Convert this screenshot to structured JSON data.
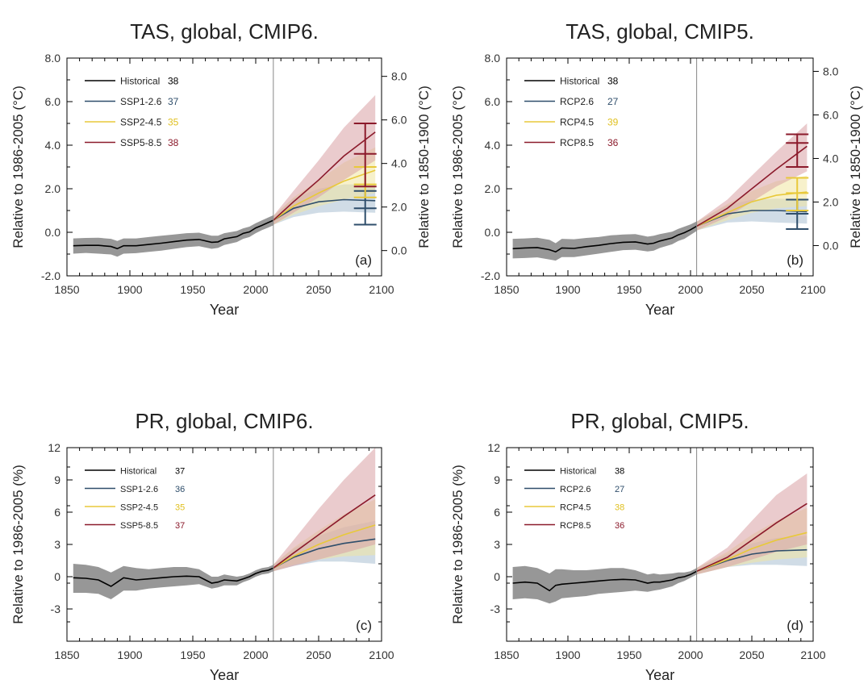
{
  "chart_data": [
    {
      "type": "line",
      "panel_label": "(a)",
      "title": "TAS, global, CMIP6.",
      "xlabel": "Year",
      "ylabel": "Relative to 1986-2005 (°C)",
      "y2label": "Relative to 1850-1900 (°C)",
      "xlim": [
        1850,
        2100
      ],
      "xticks": [
        "1850",
        "1900",
        "1950",
        "2000",
        "2050",
        "2100"
      ],
      "ylim": [
        -2,
        8
      ],
      "yticks": [
        "-2.0",
        "0.0",
        "2.0",
        "4.0",
        "6.0",
        "8.0"
      ],
      "y2ticks": [
        "0.0",
        "2.0",
        "4.0",
        "6.0",
        "8.0"
      ],
      "y2offset": 0.84,
      "divider_year": 2014,
      "legend_position": "top-left",
      "series": [
        {
          "name": "Historical",
          "count": "38",
          "color": "#000000",
          "band": "#8c8c8c",
          "x": [
            1855,
            1865,
            1875,
            1885,
            1890,
            1895,
            1905,
            1915,
            1925,
            1935,
            1945,
            1955,
            1965,
            1970,
            1975,
            1985,
            1990,
            1995,
            2000,
            2005,
            2010,
            2014
          ],
          "y": [
            -0.62,
            -0.6,
            -0.6,
            -0.65,
            -0.75,
            -0.62,
            -0.62,
            -0.56,
            -0.5,
            -0.43,
            -0.36,
            -0.33,
            -0.46,
            -0.44,
            -0.3,
            -0.2,
            -0.05,
            0.02,
            0.2,
            0.32,
            0.45,
            0.55
          ],
          "lower": [
            -0.98,
            -0.95,
            -0.98,
            -1.02,
            -1.12,
            -0.98,
            -0.96,
            -0.9,
            -0.84,
            -0.76,
            -0.68,
            -0.64,
            -0.76,
            -0.72,
            -0.58,
            -0.45,
            -0.3,
            -0.22,
            -0.04,
            0.1,
            0.22,
            0.32
          ],
          "upper": [
            -0.28,
            -0.26,
            -0.25,
            -0.3,
            -0.4,
            -0.28,
            -0.28,
            -0.22,
            -0.16,
            -0.1,
            -0.04,
            -0.02,
            -0.16,
            -0.16,
            -0.04,
            0.06,
            0.18,
            0.26,
            0.42,
            0.55,
            0.68,
            0.78
          ]
        },
        {
          "name": "SSP1-2.6",
          "count": "37",
          "color": "#2f4e6b",
          "band": "#a9bfd2",
          "x": [
            2014,
            2030,
            2050,
            2070,
            2095
          ],
          "y": [
            0.55,
            1.1,
            1.4,
            1.5,
            1.45
          ],
          "lower": [
            0.35,
            0.7,
            0.9,
            0.95,
            0.9
          ],
          "upper": [
            0.75,
            1.55,
            2.0,
            2.2,
            2.2
          ]
        },
        {
          "name": "SSP2-4.5",
          "count": "35",
          "color": "#e8c93a",
          "band": "#f0e6a0",
          "x": [
            2014,
            2030,
            2050,
            2070,
            2095
          ],
          "y": [
            0.55,
            1.2,
            1.8,
            2.35,
            2.85
          ],
          "lower": [
            0.35,
            0.8,
            1.2,
            1.5,
            1.8
          ],
          "upper": [
            0.75,
            1.6,
            2.4,
            3.2,
            3.9
          ]
        },
        {
          "name": "SSP5-8.5",
          "count": "38",
          "color": "#8b1a2b",
          "band": "#d9a0a4",
          "x": [
            2014,
            2030,
            2050,
            2070,
            2095
          ],
          "y": [
            0.55,
            1.4,
            2.4,
            3.5,
            4.6
          ],
          "lower": [
            0.35,
            0.9,
            1.6,
            2.4,
            3.3
          ],
          "upper": [
            0.75,
            1.9,
            3.3,
            4.8,
            6.3
          ]
        }
      ],
      "error_bars": [
        {
          "series": "SSP1-2.6",
          "x": 2087,
          "low": 0.35,
          "mid": 1.1,
          "high": 1.9
        },
        {
          "series": "SSP2-4.5",
          "x": 2087,
          "low": 1.6,
          "mid": 2.2,
          "high": 3.0
        },
        {
          "series": "SSP5-8.5",
          "x": 2087,
          "low": 2.1,
          "mid": 3.6,
          "high": 5.0
        }
      ]
    },
    {
      "type": "line",
      "panel_label": "(b)",
      "title": "TAS, global, CMIP5.",
      "xlabel": "Year",
      "ylabel": "Relative to 1986-2005 (°C)",
      "y2label": "Relative to 1850-1900 (°C)",
      "xlim": [
        1850,
        2100
      ],
      "xticks": [
        "1850",
        "1900",
        "1950",
        "2000",
        "2050",
        "2100"
      ],
      "ylim": [
        -2,
        8
      ],
      "yticks": [
        "-2.0",
        "0.0",
        "2.0",
        "4.0",
        "6.0",
        "8.0"
      ],
      "y2ticks": [
        "0.0",
        "2.0",
        "4.0",
        "6.0",
        "8.0"
      ],
      "y2offset": 0.61,
      "divider_year": 2005,
      "legend_position": "top-left",
      "series": [
        {
          "name": "Historical",
          "count": "38",
          "color": "#000000",
          "band": "#8c8c8c",
          "x": [
            1855,
            1865,
            1875,
            1885,
            1890,
            1895,
            1905,
            1915,
            1925,
            1935,
            1945,
            1955,
            1965,
            1970,
            1975,
            1985,
            1990,
            1995,
            2000,
            2005
          ],
          "y": [
            -0.75,
            -0.72,
            -0.7,
            -0.8,
            -0.9,
            -0.72,
            -0.74,
            -0.66,
            -0.6,
            -0.52,
            -0.46,
            -0.44,
            -0.54,
            -0.5,
            -0.4,
            -0.26,
            -0.12,
            -0.02,
            0.12,
            0.28
          ],
          "lower": [
            -1.2,
            -1.18,
            -1.15,
            -1.25,
            -1.3,
            -1.14,
            -1.14,
            -1.06,
            -0.98,
            -0.9,
            -0.82,
            -0.8,
            -0.88,
            -0.84,
            -0.72,
            -0.55,
            -0.4,
            -0.3,
            -0.12,
            0.06
          ],
          "upper": [
            -0.3,
            -0.28,
            -0.25,
            -0.35,
            -0.5,
            -0.3,
            -0.32,
            -0.26,
            -0.22,
            -0.14,
            -0.1,
            -0.08,
            -0.2,
            -0.16,
            -0.08,
            0.03,
            0.16,
            0.26,
            0.36,
            0.5
          ]
        },
        {
          "name": "RCP2.6",
          "count": "27",
          "color": "#2f4e6b",
          "band": "#a9bfd2",
          "x": [
            2005,
            2030,
            2050,
            2070,
            2095
          ],
          "y": [
            0.28,
            0.85,
            1.0,
            1.0,
            0.95
          ],
          "lower": [
            0.08,
            0.45,
            0.5,
            0.45,
            0.4
          ],
          "upper": [
            0.48,
            1.25,
            1.5,
            1.55,
            1.5
          ]
        },
        {
          "name": "RCP4.5",
          "count": "39",
          "color": "#e8c93a",
          "band": "#f0e6a0",
          "x": [
            2005,
            2030,
            2050,
            2070,
            2095
          ],
          "y": [
            0.28,
            0.9,
            1.4,
            1.7,
            1.85
          ],
          "lower": [
            0.08,
            0.55,
            0.9,
            1.1,
            1.2
          ],
          "upper": [
            0.48,
            1.3,
            1.9,
            2.35,
            2.6
          ]
        },
        {
          "name": "RCP8.5",
          "count": "36",
          "color": "#8b1a2b",
          "band": "#d9a0a4",
          "x": [
            2005,
            2030,
            2050,
            2070,
            2095
          ],
          "y": [
            0.28,
            1.1,
            2.0,
            2.9,
            3.95
          ],
          "lower": [
            0.08,
            0.7,
            1.4,
            2.1,
            2.8
          ],
          "upper": [
            0.48,
            1.5,
            2.6,
            3.7,
            5.0
          ]
        }
      ],
      "error_bars": [
        {
          "series": "RCP2.6",
          "x": 2087,
          "low": 0.15,
          "mid": 0.85,
          "high": 1.5
        },
        {
          "series": "RCP4.5",
          "x": 2087,
          "low": 1.0,
          "mid": 1.8,
          "high": 2.5
        },
        {
          "series": "RCP8.5",
          "x": 2087,
          "low": 3.0,
          "mid": 4.1,
          "high": 4.5
        }
      ]
    },
    {
      "type": "line",
      "panel_label": "(c)",
      "title": "PR, global, CMIP6.",
      "xlabel": "Year",
      "ylabel": "Relative to 1986-2005 (%)",
      "xlim": [
        1850,
        2100
      ],
      "xticks": [
        "1850",
        "1900",
        "1950",
        "2000",
        "2050",
        "2100"
      ],
      "ylim": [
        -6,
        12
      ],
      "yticks": [
        "-3",
        "0",
        "3",
        "6",
        "9",
        "12"
      ],
      "divider_year": 2014,
      "legend_position": "top-left",
      "series": [
        {
          "name": "Historical",
          "count": "37",
          "color": "#000000",
          "band": "#8c8c8c",
          "x": [
            1855,
            1865,
            1875,
            1885,
            1890,
            1895,
            1905,
            1915,
            1925,
            1935,
            1945,
            1955,
            1965,
            1970,
            1975,
            1985,
            1990,
            1995,
            2000,
            2005,
            2010,
            2014
          ],
          "y": [
            -0.1,
            -0.15,
            -0.3,
            -0.9,
            -0.5,
            -0.1,
            -0.3,
            -0.2,
            -0.1,
            0.0,
            0.05,
            0.0,
            -0.6,
            -0.5,
            -0.3,
            -0.4,
            -0.2,
            0.0,
            0.3,
            0.5,
            0.6,
            0.8
          ],
          "lower": [
            -1.5,
            -1.5,
            -1.6,
            -2.1,
            -1.7,
            -1.3,
            -1.3,
            -1.1,
            -1.0,
            -0.9,
            -0.8,
            -0.7,
            -1.1,
            -1.0,
            -0.8,
            -0.8,
            -0.5,
            -0.3,
            0.0,
            0.2,
            0.3,
            0.5
          ],
          "upper": [
            1.2,
            1.1,
            0.9,
            0.4,
            0.7,
            1.0,
            0.8,
            0.7,
            0.8,
            0.9,
            0.9,
            0.7,
            0.0,
            0.0,
            0.2,
            0.0,
            0.1,
            0.3,
            0.6,
            0.8,
            0.9,
            1.1
          ]
        },
        {
          "name": "SSP1-2.6",
          "count": "36",
          "color": "#2f4e6b",
          "band": "#a9bfd2",
          "x": [
            2014,
            2030,
            2050,
            2070,
            2095
          ],
          "y": [
            0.8,
            1.8,
            2.6,
            3.1,
            3.5
          ],
          "lower": [
            0.5,
            1.0,
            1.4,
            1.4,
            1.2
          ],
          "upper": [
            1.1,
            2.6,
            3.8,
            4.6,
            5.2
          ]
        },
        {
          "name": "SSP2-4.5",
          "count": "35",
          "color": "#e8c93a",
          "band": "#f0e6a0",
          "x": [
            2014,
            2030,
            2050,
            2070,
            2095
          ],
          "y": [
            0.8,
            1.9,
            3.0,
            3.9,
            4.8
          ],
          "lower": [
            0.5,
            1.1,
            1.6,
            1.9,
            2.0
          ],
          "upper": [
            1.1,
            2.7,
            4.3,
            5.8,
            7.2
          ]
        },
        {
          "name": "SSP5-8.5",
          "count": "37",
          "color": "#8b1a2b",
          "band": "#d9a0a4",
          "x": [
            2014,
            2030,
            2050,
            2070,
            2095
          ],
          "y": [
            0.8,
            2.2,
            3.9,
            5.6,
            7.6
          ],
          "lower": [
            0.5,
            1.0,
            1.6,
            2.2,
            3.0
          ],
          "upper": [
            1.1,
            3.4,
            6.3,
            9.0,
            12.0
          ]
        }
      ]
    },
    {
      "type": "line",
      "panel_label": "(d)",
      "title": "PR, global, CMIP5.",
      "xlabel": "Year",
      "ylabel": "Relative to 1986-2005 (%)",
      "xlim": [
        1850,
        2100
      ],
      "xticks": [
        "1850",
        "1900",
        "1950",
        "2000",
        "2050",
        "2100"
      ],
      "ylim": [
        -6,
        12
      ],
      "yticks": [
        "-3",
        "0",
        "3",
        "6",
        "9",
        "12"
      ],
      "divider_year": 2005,
      "legend_position": "top-left",
      "series": [
        {
          "name": "Historical",
          "count": "38",
          "color": "#000000",
          "band": "#8c8c8c",
          "x": [
            1855,
            1865,
            1875,
            1885,
            1890,
            1895,
            1905,
            1915,
            1925,
            1935,
            1945,
            1955,
            1965,
            1970,
            1975,
            1985,
            1990,
            1995,
            2000,
            2005
          ],
          "y": [
            -0.6,
            -0.5,
            -0.6,
            -1.3,
            -0.8,
            -0.7,
            -0.6,
            -0.5,
            -0.4,
            -0.3,
            -0.25,
            -0.3,
            -0.6,
            -0.5,
            -0.5,
            -0.3,
            -0.1,
            0.0,
            0.2,
            0.5
          ],
          "lower": [
            -2.1,
            -2.0,
            -2.1,
            -2.5,
            -2.3,
            -2.0,
            -1.9,
            -1.8,
            -1.6,
            -1.5,
            -1.4,
            -1.3,
            -1.4,
            -1.3,
            -1.2,
            -0.9,
            -0.6,
            -0.4,
            -0.1,
            0.2
          ],
          "upper": [
            0.9,
            1.0,
            0.8,
            0.3,
            0.7,
            0.7,
            0.6,
            0.6,
            0.7,
            0.8,
            0.8,
            0.6,
            0.2,
            0.3,
            0.2,
            0.3,
            0.4,
            0.4,
            0.5,
            0.8
          ]
        },
        {
          "name": "RCP2.6",
          "count": "27",
          "color": "#2f4e6b",
          "band": "#a9bfd2",
          "x": [
            2005,
            2030,
            2050,
            2070,
            2095
          ],
          "y": [
            0.5,
            1.5,
            2.1,
            2.4,
            2.5
          ],
          "lower": [
            0.2,
            0.9,
            1.1,
            1.1,
            1.0
          ],
          "upper": [
            0.8,
            2.1,
            3.1,
            3.6,
            3.8
          ]
        },
        {
          "name": "RCP4.5",
          "count": "38",
          "color": "#e8c93a",
          "band": "#f0e6a0",
          "x": [
            2005,
            2030,
            2050,
            2070,
            2095
          ],
          "y": [
            0.5,
            1.6,
            2.6,
            3.4,
            4.1
          ],
          "lower": [
            0.2,
            0.9,
            1.3,
            1.6,
            1.8
          ],
          "upper": [
            0.8,
            2.3,
            3.9,
            5.2,
            6.4
          ]
        },
        {
          "name": "RCP8.5",
          "count": "36",
          "color": "#8b1a2b",
          "band": "#d9a0a4",
          "x": [
            2005,
            2030,
            2050,
            2070,
            2095
          ],
          "y": [
            0.5,
            1.8,
            3.4,
            5.0,
            6.8
          ],
          "lower": [
            0.2,
            0.9,
            1.6,
            2.3,
            3.0
          ],
          "upper": [
            0.8,
            2.7,
            5.2,
            7.6,
            9.6
          ]
        }
      ]
    }
  ]
}
